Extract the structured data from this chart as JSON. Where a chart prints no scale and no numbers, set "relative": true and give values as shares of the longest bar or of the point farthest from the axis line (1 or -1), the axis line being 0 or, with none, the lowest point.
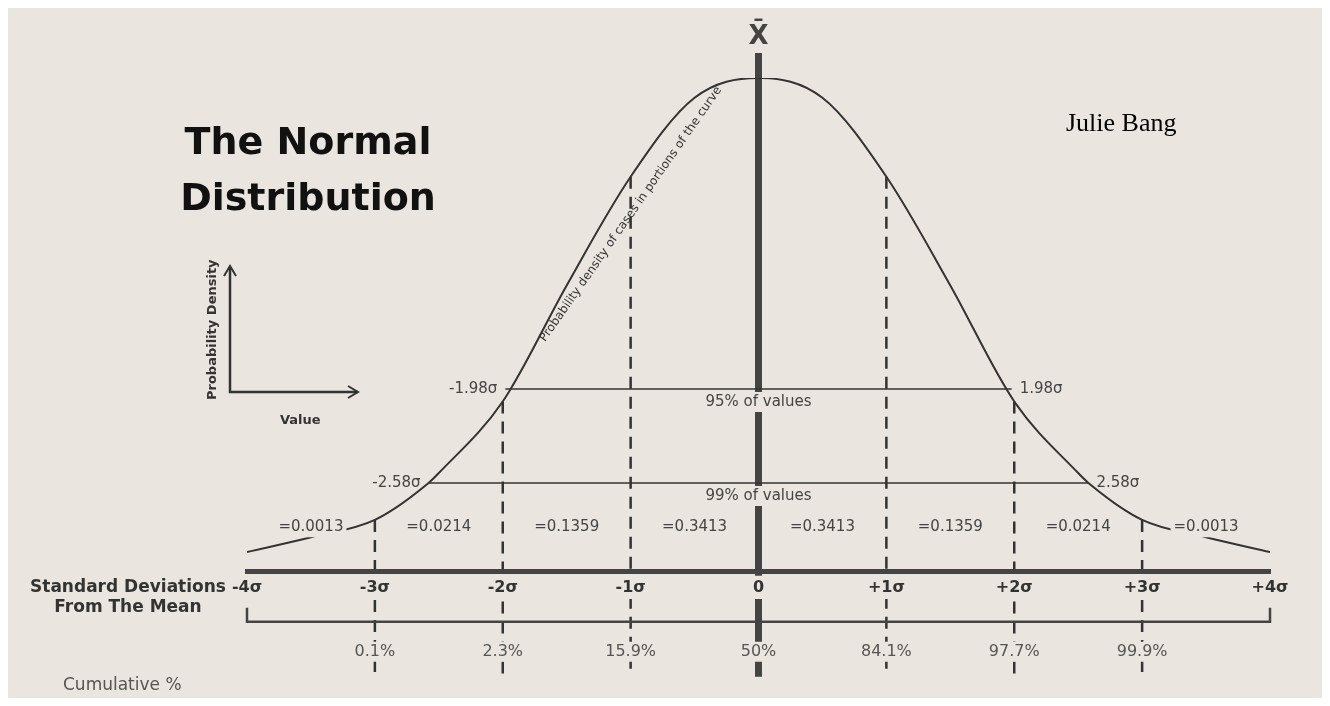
{
  "chart_data": {
    "type": "line",
    "title": "The Normal Distribution",
    "relative": true,
    "xlabel": "Standard Deviations From The Mean",
    "x": [
      -4,
      -3.5,
      -3,
      -2.58,
      -2.5,
      -2,
      -1.5,
      -1,
      -0.5,
      0,
      0.5,
      1,
      1.5,
      2,
      2.5,
      2.58,
      3,
      3.5,
      4
    ],
    "series": [
      {
        "color": "#333333",
        "values": [
          0.04,
          0.07,
          0.105,
          0.18,
          0.2,
          0.345,
          0.58,
          0.8,
          0.96,
          1,
          0.96,
          0.8,
          0.58,
          0.345,
          0.2,
          0.18,
          0.105,
          0.07,
          0.04
        ]
      },
      {
        "color": "#333333",
        "x": [
          -1.98,
          1.98
        ],
        "values": [
          0.37,
          0.37
        ]
      },
      {
        "color": "#333333",
        "x": [
          -2.58,
          2.58
        ],
        "values": [
          0.18,
          0.18
        ]
      }
    ],
    "xlim": [
      -4,
      4
    ],
    "xticks": [
      {
        "value": -4,
        "label": "-4σ"
      },
      {
        "value": -3,
        "label": "-3σ"
      },
      {
        "value": -2,
        "label": "-2σ"
      },
      {
        "value": -1,
        "label": "-1σ"
      },
      0,
      {
        "value": 1,
        "label": "+1σ"
      },
      {
        "value": 2,
        "label": "+2σ"
      },
      {
        "value": 3,
        "label": "+3σ"
      },
      {
        "value": 4,
        "label": "+4σ"
      }
    ],
    "ref_lines": [
      {
        "axis": "x",
        "value": 0,
        "label": "X̄",
        "line_style": "solid",
        "color": "#444444"
      },
      {
        "axis": "x",
        "value": -3,
        "line_style": "dashed",
        "color": "#333333"
      },
      {
        "axis": "x",
        "value": -2,
        "line_style": "dashed",
        "color": "#333333"
      },
      {
        "axis": "x",
        "value": -1,
        "line_style": "dashed",
        "color": "#333333"
      },
      {
        "axis": "x",
        "value": 1,
        "line_style": "dashed",
        "color": "#333333"
      },
      {
        "axis": "x",
        "value": 2,
        "line_style": "dashed",
        "color": "#333333"
      },
      {
        "axis": "x",
        "value": 3,
        "line_style": "dashed",
        "color": "#333333"
      }
    ],
    "annotations": [
      "Probability density of cases in portions of the curve",
      "Probability Density",
      "Value",
      "Julie Bang",
      "Cumulative %",
      "0.1%",
      "2.3%",
      "15.9%",
      "50%",
      "84.1%",
      "97.7%",
      "99.9%",
      "=0.0013",
      "=0.0214",
      "=0.1359",
      "=0.3413",
      "=0.3413",
      "=0.1359",
      "=0.0214",
      "=0.0013",
      {
        "text": "-1.98σ",
        "x": -1.98,
        "y": 0.37
      },
      {
        "text": "1.98σ",
        "x": 1.98,
        "y": 0.37
      },
      {
        "text": "95% of values",
        "x": 0,
        "y": 0.37
      },
      {
        "text": "-2.58σ",
        "x": -2.58,
        "y": 0.18
      },
      {
        "text": "2.58σ",
        "x": 2.58,
        "y": 0.18
      },
      {
        "text": "99% of values",
        "x": 0,
        "y": 0.18
      }
    ],
    "grid": false,
    "legend": false
  }
}
